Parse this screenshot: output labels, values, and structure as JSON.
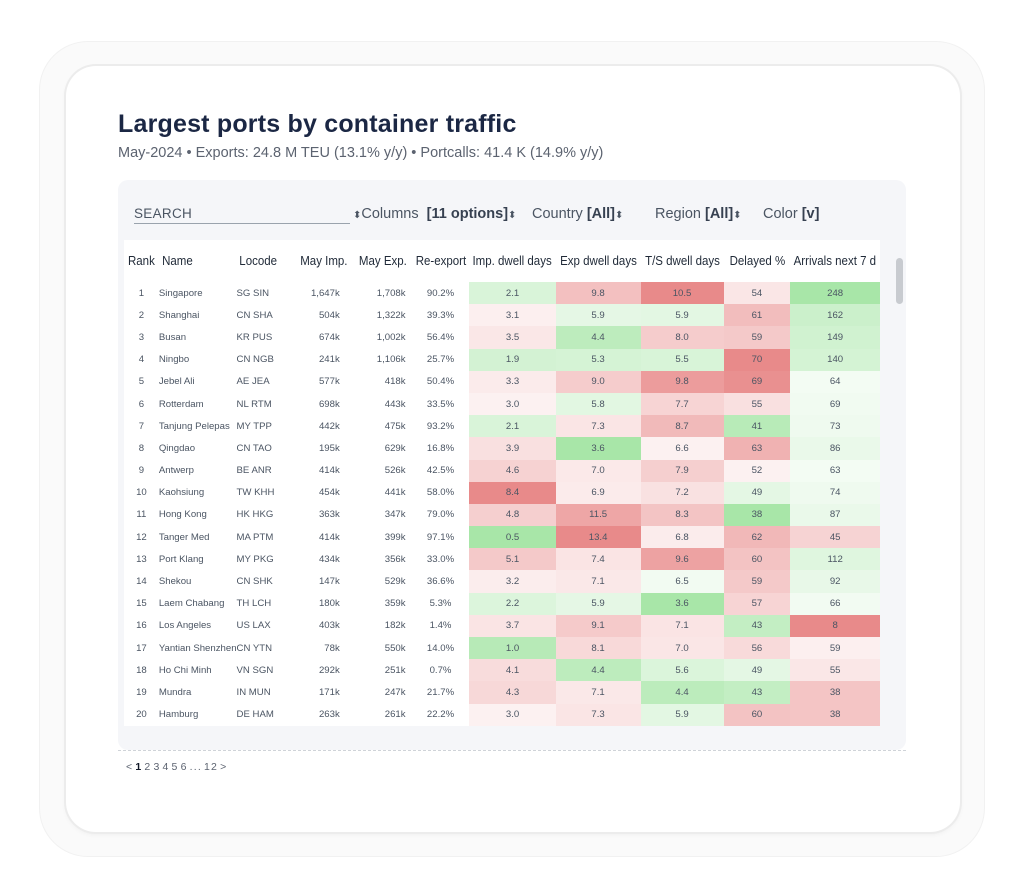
{
  "title": "Largest ports by container traffic",
  "subtitle": "May-2024 • Exports: 24.8 M TEU (13.1% y/y) • Portcalls: 41.4 K (14.9% y/y)",
  "toolbar": {
    "search_label": "SEARCH",
    "columns_label": "Columns",
    "columns_value": "[11 options]",
    "country_label": "Country",
    "country_value": "[All]",
    "region_label": "Region",
    "region_value": "[All]",
    "color_label": "Color",
    "color_value": "[v]"
  },
  "columns": [
    "Rank",
    "Name",
    "Locode",
    "May Imp.",
    "May Exp.",
    "Re-export",
    "Imp. dwell days",
    "Exp dwell days",
    "T/S dwell days",
    "Delayed %",
    "Arrivals next 7 d"
  ],
  "rows": [
    [
      "1",
      "Singapore",
      "SG SIN",
      "1,647k",
      "1,708k",
      "90.2%",
      "2.1",
      "9.8",
      "10.5",
      "54",
      "248"
    ],
    [
      "2",
      "Shanghai",
      "CN SHA",
      "504k",
      "1,322k",
      "39.3%",
      "3.1",
      "5.9",
      "5.9",
      "61",
      "162"
    ],
    [
      "3",
      "Busan",
      "KR PUS",
      "674k",
      "1,002k",
      "56.4%",
      "3.5",
      "4.4",
      "8.0",
      "59",
      "149"
    ],
    [
      "4",
      "Ningbo",
      "CN NGB",
      "241k",
      "1,106k",
      "25.7%",
      "1.9",
      "5.3",
      "5.5",
      "70",
      "140"
    ],
    [
      "5",
      "Jebel Ali",
      "AE JEA",
      "577k",
      "418k",
      "50.4%",
      "3.3",
      "9.0",
      "9.8",
      "69",
      "64"
    ],
    [
      "6",
      "Rotterdam",
      "NL RTM",
      "698k",
      "443k",
      "33.5%",
      "3.0",
      "5.8",
      "7.7",
      "55",
      "69"
    ],
    [
      "7",
      "Tanjung Pelepas",
      "MY TPP",
      "442k",
      "475k",
      "93.2%",
      "2.1",
      "7.3",
      "8.7",
      "41",
      "73"
    ],
    [
      "8",
      "Qingdao",
      "CN TAO",
      "195k",
      "629k",
      "16.8%",
      "3.9",
      "3.6",
      "6.6",
      "63",
      "86"
    ],
    [
      "9",
      "Antwerp",
      "BE ANR",
      "414k",
      "526k",
      "42.5%",
      "4.6",
      "7.0",
      "7.9",
      "52",
      "63"
    ],
    [
      "10",
      "Kaohsiung",
      "TW KHH",
      "454k",
      "441k",
      "58.0%",
      "8.4",
      "6.9",
      "7.2",
      "49",
      "74"
    ],
    [
      "11",
      "Hong Kong",
      "HK HKG",
      "363k",
      "347k",
      "79.0%",
      "4.8",
      "11.5",
      "8.3",
      "38",
      "87"
    ],
    [
      "12",
      "Tanger Med",
      "MA PTM",
      "414k",
      "399k",
      "97.1%",
      "0.5",
      "13.4",
      "6.8",
      "62",
      "45"
    ],
    [
      "13",
      "Port Klang",
      "MY PKG",
      "434k",
      "356k",
      "33.0%",
      "5.1",
      "7.4",
      "9.6",
      "60",
      "112"
    ],
    [
      "14",
      "Shekou",
      "CN SHK",
      "147k",
      "529k",
      "36.6%",
      "3.2",
      "7.1",
      "6.5",
      "59",
      "92"
    ],
    [
      "15",
      "Laem Chabang",
      "TH LCH",
      "180k",
      "359k",
      "5.3%",
      "2.2",
      "5.9",
      "3.6",
      "57",
      "66"
    ],
    [
      "16",
      "Los Angeles",
      "US LAX",
      "403k",
      "182k",
      "1.4%",
      "3.7",
      "9.1",
      "7.1",
      "43",
      "8"
    ],
    [
      "17",
      "Yantian Shenzhen",
      "CN YTN",
      "78k",
      "550k",
      "14.0%",
      "1.0",
      "8.1",
      "7.0",
      "56",
      "59"
    ],
    [
      "18",
      "Ho Chi Minh",
      "VN SGN",
      "292k",
      "251k",
      "0.7%",
      "4.1",
      "4.4",
      "5.6",
      "49",
      "55"
    ],
    [
      "19",
      "Mundra",
      "IN MUN",
      "171k",
      "247k",
      "21.7%",
      "4.3",
      "7.1",
      "4.4",
      "43",
      "38"
    ],
    [
      "20",
      "Hamburg",
      "DE HAM",
      "263k",
      "261k",
      "22.2%",
      "3.0",
      "7.3",
      "5.9",
      "60",
      "38"
    ]
  ],
  "colors": {
    "title": "#1b2744",
    "red_scale_end": "#e88a8a",
    "green_scale_end": "#a8e6a8",
    "neutral": "#ffffff"
  },
  "pagination": {
    "prev": "<",
    "pages": [
      "1",
      "2",
      "3",
      "4",
      "5",
      "6",
      "...",
      "12"
    ],
    "current": "1",
    "next": ">"
  }
}
